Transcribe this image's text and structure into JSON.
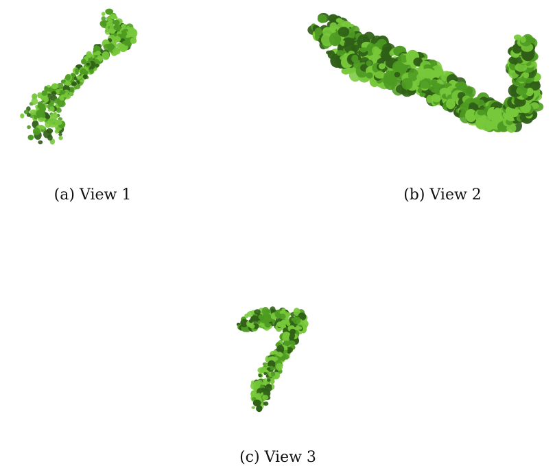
{
  "figure": {
    "panels": [
      {
        "caption": "(a) View 1",
        "image": "cryo-em-density-map-green"
      },
      {
        "caption": "(b) View 2",
        "image": "cryo-em-density-map-green"
      },
      {
        "caption": "(c) View 3",
        "image": "cryo-em-density-map-green"
      }
    ],
    "colors": {
      "density_light": "#77c83a",
      "density_mid": "#4e9b22",
      "density_dark": "#2f5f17"
    }
  }
}
